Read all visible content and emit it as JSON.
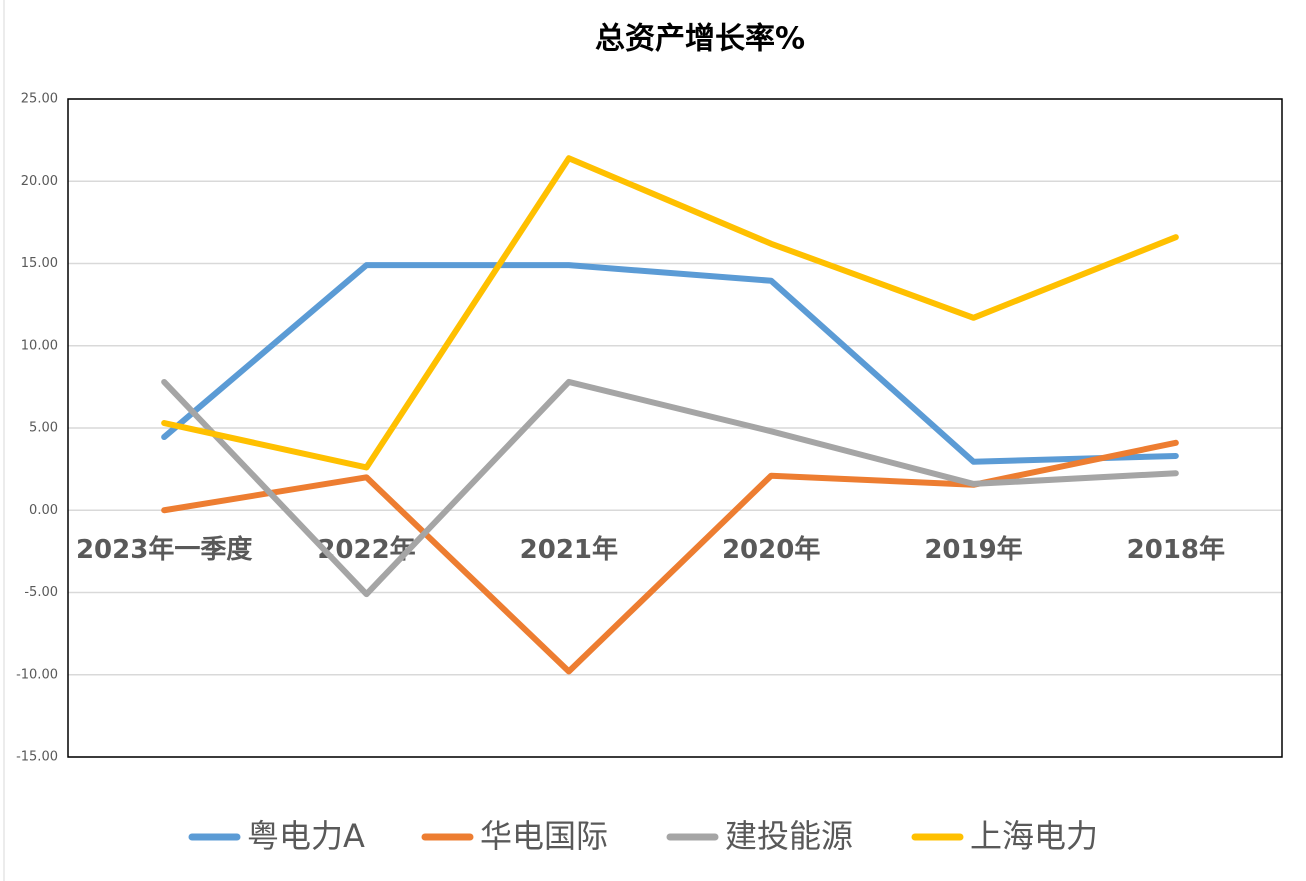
{
  "chart_data": {
    "type": "line",
    "title": "总资产增长率%",
    "categories": [
      "2023年一季度",
      "2022年",
      "2021年",
      "2020年",
      "2019年",
      "2018年"
    ],
    "series": [
      {
        "name": "粤电力A",
        "color": "#5b9bd5",
        "values": [
          4.45,
          14.9,
          14.9,
          13.95,
          2.95,
          3.3
        ]
      },
      {
        "name": "华电国际",
        "color": "#ed7d31",
        "values": [
          0,
          2.0,
          -9.8,
          2.1,
          1.55,
          4.1
        ]
      },
      {
        "name": "建投能源",
        "color": "#a5a5a5",
        "values": [
          7.8,
          -5.1,
          7.8,
          4.8,
          1.6,
          2.25
        ]
      },
      {
        "name": "上海电力",
        "color": "#ffc000",
        "values": [
          5.3,
          2.6,
          21.4,
          16.2,
          11.7,
          16.6
        ]
      }
    ],
    "ylim": [
      -15,
      25
    ],
    "yticks": [
      {
        "value": -15,
        "label": "-15.00"
      },
      {
        "value": -10,
        "label": "-10.00"
      },
      {
        "value": -5,
        "label": "-5.00"
      },
      {
        "value": 0,
        "label": "0.00"
      },
      {
        "value": 5,
        "label": "5.00"
      },
      {
        "value": 10,
        "label": "10.00"
      },
      {
        "value": 15,
        "label": "15.00"
      },
      {
        "value": 20,
        "label": "20.00"
      },
      {
        "value": 25,
        "label": "25.00"
      }
    ],
    "grid": true
  }
}
